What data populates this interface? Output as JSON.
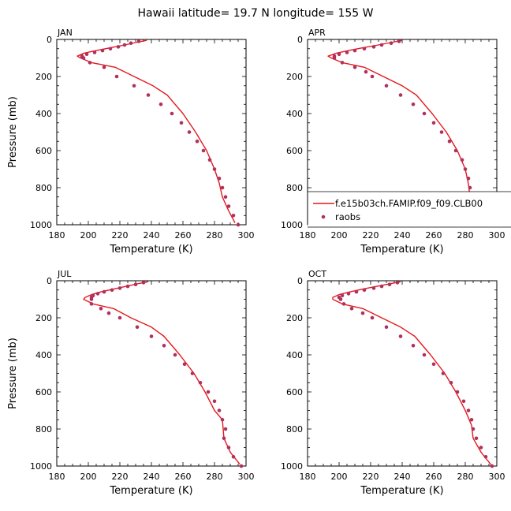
{
  "figure": {
    "title": "Hawaii   latitude= 19.7 N longitude= 155 W"
  },
  "colors": {
    "model_line": "#e41a1c",
    "raobs_marker": "#b03060"
  },
  "legend": {
    "model_label": "f.e15b03ch.FAMIP.f09_f09.CLB00",
    "obs_label": "raobs"
  },
  "chart_data": [
    {
      "type": "line",
      "panel": "JAN",
      "xlabel": "Temperature (K)",
      "ylabel": "Pressure (mb)",
      "xlim": [
        180,
        300
      ],
      "ylim": [
        1000,
        0
      ],
      "x_ticks": [
        180,
        200,
        220,
        240,
        260,
        280,
        300
      ],
      "y_ticks": [
        0,
        200,
        400,
        600,
        800,
        1000
      ],
      "series": [
        {
          "name": "f.e15b03ch.FAMIP.f09_f09.CLB00",
          "style": "line",
          "points": [
            [
              237,
              5
            ],
            [
              231,
              15
            ],
            [
              223,
              30
            ],
            [
              214,
              45
            ],
            [
              205,
              60
            ],
            [
              197,
              75
            ],
            [
              193,
              90
            ],
            [
              195,
              100
            ],
            [
              202,
              125
            ],
            [
              217,
              150
            ],
            [
              229,
              200
            ],
            [
              241,
              250
            ],
            [
              250,
              300
            ],
            [
              260,
              400
            ],
            [
              268,
              500
            ],
            [
              275,
              600
            ],
            [
              280,
              700
            ],
            [
              283,
              775
            ],
            [
              285,
              850
            ],
            [
              289,
              925
            ],
            [
              293,
              990
            ]
          ]
        },
        {
          "name": "raobs",
          "style": "markers",
          "points": [
            [
              232,
              10
            ],
            [
              227,
              20
            ],
            [
              223,
              30
            ],
            [
              219,
              40
            ],
            [
              214,
              50
            ],
            [
              209,
              60
            ],
            [
              204,
              70
            ],
            [
              199,
              80
            ],
            [
              196,
              90
            ],
            [
              197,
              100
            ],
            [
              201,
              125
            ],
            [
              210,
              150
            ],
            [
              218,
              200
            ],
            [
              229,
              250
            ],
            [
              238,
              300
            ],
            [
              246,
              350
            ],
            [
              253,
              400
            ],
            [
              259,
              450
            ],
            [
              264,
              500
            ],
            [
              269,
              550
            ],
            [
              273,
              600
            ],
            [
              277,
              650
            ],
            [
              280,
              700
            ],
            [
              283,
              750
            ],
            [
              285,
              800
            ],
            [
              287,
              850
            ],
            [
              289,
              900
            ],
            [
              292,
              950
            ],
            [
              295,
              1000
            ]
          ]
        }
      ]
    },
    {
      "type": "line",
      "panel": "APR",
      "xlabel": "Temperature (K)",
      "ylabel": "",
      "xlim": [
        180,
        300
      ],
      "ylim": [
        1000,
        0
      ],
      "x_ticks": [
        180,
        200,
        220,
        240,
        260,
        280,
        300
      ],
      "y_ticks": [
        0,
        200,
        400,
        600,
        800,
        1000
      ],
      "legend_location": "lower-right",
      "series": [
        {
          "name": "f.e15b03ch.FAMIP.f09_f09.CLB00",
          "style": "line",
          "points": [
            [
              240,
              5
            ],
            [
              234,
              15
            ],
            [
              225,
              30
            ],
            [
              215,
              45
            ],
            [
              206,
              60
            ],
            [
              198,
              75
            ],
            [
              193,
              90
            ],
            [
              195,
              100
            ],
            [
              202,
              125
            ],
            [
              216,
              150
            ],
            [
              228,
              200
            ],
            [
              240,
              250
            ],
            [
              249,
              300
            ],
            [
              259,
              400
            ],
            [
              268,
              500
            ],
            [
              275,
              600
            ],
            [
              280,
              700
            ],
            [
              282,
              780
            ],
            [
              283,
              850
            ],
            [
              288,
              925
            ],
            [
              293,
              990
            ]
          ]
        },
        {
          "name": "raobs",
          "style": "markers",
          "points": [
            [
              238,
              10
            ],
            [
              233,
              20
            ],
            [
              227,
              30
            ],
            [
              222,
              40
            ],
            [
              216,
              50
            ],
            [
              210,
              60
            ],
            [
              205,
              70
            ],
            [
              200,
              80
            ],
            [
              197,
              90
            ],
            [
              197,
              100
            ],
            [
              202,
              125
            ],
            [
              210,
              150
            ],
            [
              217,
              175
            ],
            [
              221,
              200
            ],
            [
              230,
              250
            ],
            [
              239,
              300
            ],
            [
              247,
              350
            ],
            [
              254,
              400
            ],
            [
              260,
              450
            ],
            [
              265,
              500
            ],
            [
              270,
              550
            ],
            [
              274,
              600
            ],
            [
              278,
              650
            ],
            [
              280,
              700
            ],
            [
              282,
              750
            ],
            [
              283,
              800
            ],
            [
              285,
              850
            ],
            [
              287,
              900
            ],
            [
              291,
              950
            ],
            [
              295,
              1000
            ]
          ]
        }
      ]
    },
    {
      "type": "line",
      "panel": "JUL",
      "xlabel": "Temperature (K)",
      "ylabel": "Pressure (mb)",
      "xlim": [
        180,
        300
      ],
      "ylim": [
        1000,
        0
      ],
      "x_ticks": [
        180,
        200,
        220,
        240,
        260,
        280,
        300
      ],
      "y_ticks": [
        0,
        200,
        400,
        600,
        800,
        1000
      ],
      "series": [
        {
          "name": "f.e15b03ch.FAMIP.f09_f09.CLB00",
          "style": "line",
          "points": [
            [
              238,
              5
            ],
            [
              232,
              15
            ],
            [
              224,
              30
            ],
            [
              216,
              45
            ],
            [
              208,
              60
            ],
            [
              202,
              75
            ],
            [
              198,
              90
            ],
            [
              197,
              100
            ],
            [
              203,
              125
            ],
            [
              216,
              150
            ],
            [
              227,
              200
            ],
            [
              240,
              250
            ],
            [
              248,
              300
            ],
            [
              258,
              400
            ],
            [
              267,
              500
            ],
            [
              274,
              600
            ],
            [
              280,
              700
            ],
            [
              285,
              750
            ],
            [
              286,
              850
            ],
            [
              290,
              925
            ],
            [
              296,
              990
            ]
          ]
        },
        {
          "name": "raobs",
          "style": "markers",
          "points": [
            [
              235,
              10
            ],
            [
              230,
              20
            ],
            [
              225,
              30
            ],
            [
              220,
              40
            ],
            [
              215,
              50
            ],
            [
              210,
              60
            ],
            [
              206,
              70
            ],
            [
              203,
              80
            ],
            [
              202,
              90
            ],
            [
              202,
              100
            ],
            [
              202,
              125
            ],
            [
              208,
              150
            ],
            [
              213,
              175
            ],
            [
              220,
              200
            ],
            [
              231,
              250
            ],
            [
              240,
              300
            ],
            [
              248,
              350
            ],
            [
              255,
              400
            ],
            [
              261,
              450
            ],
            [
              266,
              500
            ],
            [
              271,
              550
            ],
            [
              276,
              600
            ],
            [
              280,
              650
            ],
            [
              283,
              700
            ],
            [
              285,
              750
            ],
            [
              287,
              800
            ],
            [
              286,
              850
            ],
            [
              289,
              900
            ],
            [
              292,
              950
            ],
            [
              297,
              1000
            ]
          ]
        }
      ]
    },
    {
      "type": "line",
      "panel": "OCT",
      "xlabel": "Temperature (K)",
      "ylabel": "",
      "xlim": [
        180,
        300
      ],
      "ylim": [
        1000,
        0
      ],
      "x_ticks": [
        180,
        200,
        220,
        240,
        260,
        280,
        300
      ],
      "y_ticks": [
        0,
        200,
        400,
        600,
        800,
        1000
      ],
      "series": [
        {
          "name": "f.e15b03ch.FAMIP.f09_f09.CLB00",
          "style": "line",
          "points": [
            [
              239,
              5
            ],
            [
              233,
              15
            ],
            [
              224,
              30
            ],
            [
              215,
              45
            ],
            [
              207,
              60
            ],
            [
              200,
              75
            ],
            [
              196,
              90
            ],
            [
              196,
              100
            ],
            [
              202,
              125
            ],
            [
              215,
              150
            ],
            [
              227,
              200
            ],
            [
              239,
              250
            ],
            [
              248,
              300
            ],
            [
              258,
              400
            ],
            [
              267,
              500
            ],
            [
              274,
              600
            ],
            [
              280,
              700
            ],
            [
              284,
              780
            ],
            [
              285,
              850
            ],
            [
              290,
              925
            ],
            [
              297,
              1000
            ]
          ]
        },
        {
          "name": "raobs",
          "style": "markers",
          "points": [
            [
              237,
              10
            ],
            [
              232,
              20
            ],
            [
              227,
              30
            ],
            [
              222,
              40
            ],
            [
              216,
              50
            ],
            [
              211,
              60
            ],
            [
              206,
              70
            ],
            [
              202,
              80
            ],
            [
              200,
              90
            ],
            [
              201,
              100
            ],
            [
              203,
              125
            ],
            [
              208,
              150
            ],
            [
              215,
              175
            ],
            [
              221,
              200
            ],
            [
              230,
              250
            ],
            [
              239,
              300
            ],
            [
              247,
              350
            ],
            [
              254,
              400
            ],
            [
              260,
              450
            ],
            [
              266,
              500
            ],
            [
              271,
              550
            ],
            [
              275,
              600
            ],
            [
              279,
              650
            ],
            [
              282,
              700
            ],
            [
              284,
              750
            ],
            [
              285,
              800
            ],
            [
              287,
              850
            ],
            [
              290,
              900
            ],
            [
              293,
              950
            ],
            [
              297,
              1000
            ]
          ]
        }
      ]
    }
  ]
}
